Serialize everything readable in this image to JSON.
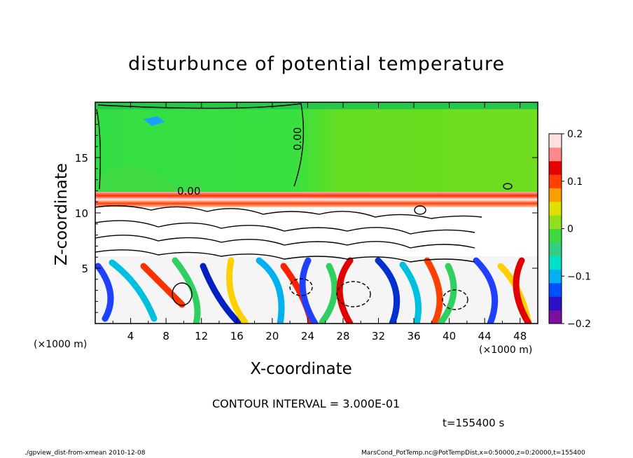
{
  "chart_data": {
    "type": "heatmap",
    "title": "disturbunce of potential temperature",
    "xlabel": "X-coordinate",
    "ylabel": "Z-coordinate",
    "x_unit": "(×1000 m)",
    "x_ticks": [
      "4",
      "8",
      "12",
      "16",
      "20",
      "24",
      "28",
      "32",
      "36",
      "40",
      "44",
      "48"
    ],
    "y_ticks": [
      "5",
      "10",
      "15"
    ],
    "xlim": [
      0,
      50
    ],
    "ylim": [
      0,
      20
    ],
    "colorbar": {
      "ticks": [
        "0.2",
        "0.1",
        "0",
        "-0.1",
        "-0.2"
      ],
      "range": [
        -0.2,
        0.2
      ],
      "colors": [
        "#7a0fa0",
        "#2a10c8",
        "#0050ff",
        "#00b0f0",
        "#00e0c8",
        "#30d080",
        "#40d840",
        "#90e020",
        "#e0e000",
        "#f8a000",
        "#ff4000",
        "#e80000",
        "#ff8888",
        "#ffe0e0"
      ]
    },
    "contour_labels": [
      "0.00",
      "0.00"
    ],
    "contour_interval": "CONTOUR INTERVAL = 3.000E-01",
    "time": "t=155400 s"
  },
  "footer": {
    "left": "./gpview_dist-from-xmean 2010-12-08",
    "right": "MarsCond_PotTemp.nc@PotTempDist,x=0:50000,z=0:20000,t=155400"
  }
}
